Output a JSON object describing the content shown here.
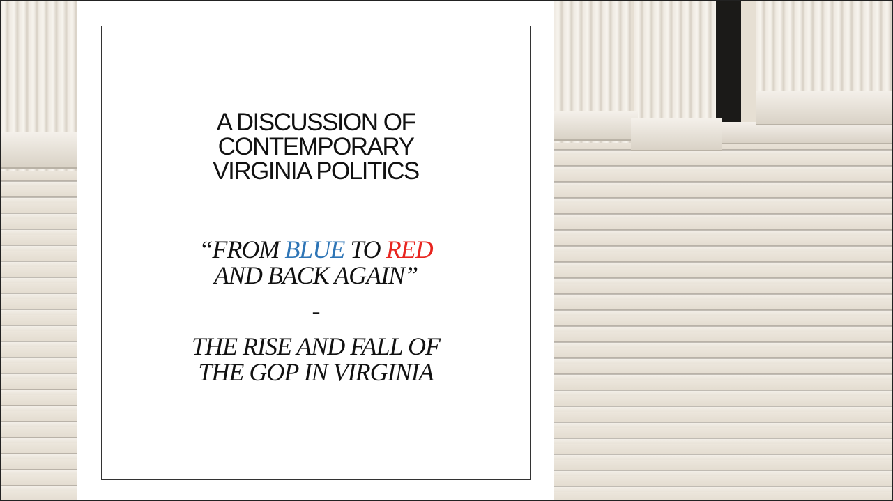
{
  "slide": {
    "title": [
      "A DISCUSSION OF",
      "CONTEMPORARY",
      "VIRGINIA POLITICS"
    ],
    "subtitle": {
      "line1": [
        "“FROM ",
        "BLUE",
        " TO ",
        "RED"
      ],
      "line2": "AND BACK AGAIN”",
      "separator": "-",
      "lines": [
        "THE RISE AND FALL OF",
        "THE GOP IN VIRGINIA"
      ]
    },
    "colors": {
      "blue": "#2e75b6",
      "red": "#e8251f"
    }
  }
}
